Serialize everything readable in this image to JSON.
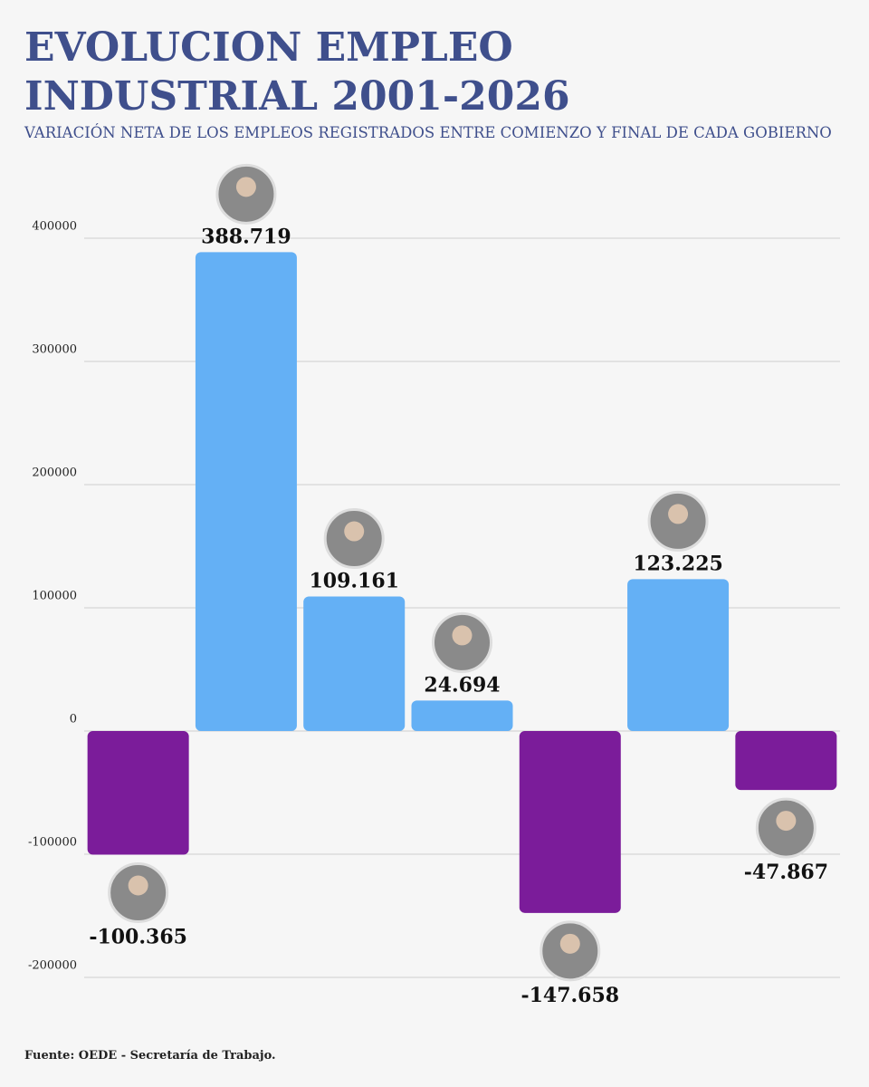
{
  "chart_data": {
    "type": "bar",
    "title": "EVOLUCION EMPLEO INDUSTRIAL 2001-2026",
    "subtitle": "VARIACIÓN NETA DE LOS EMPLEOS REGISTRADOS ENTRE COMIENZO Y FINAL DE CADA GOBIERNO",
    "source": "Fuente: OEDE - Secretaría de Trabajo.",
    "categories": [
      null,
      null,
      null,
      null,
      null,
      null,
      null
    ],
    "values": [
      -100365,
      388719,
      109161,
      24694,
      -147658,
      123225,
      -47867
    ],
    "value_labels": [
      "-100.365",
      "388.719",
      "109.161",
      "24.694",
      "-147.658",
      "123.225",
      "-47.867"
    ],
    "colors": [
      "#7b1c9a",
      "#64b0f5",
      "#64b0f5",
      "#64b0f5",
      "#7b1c9a",
      "#64b0f5",
      "#7b1c9a"
    ],
    "ylim": [
      -200000,
      400000
    ],
    "yticks": [
      -200000,
      -100000,
      0,
      100000,
      200000,
      300000,
      400000
    ],
    "grid": true
  }
}
